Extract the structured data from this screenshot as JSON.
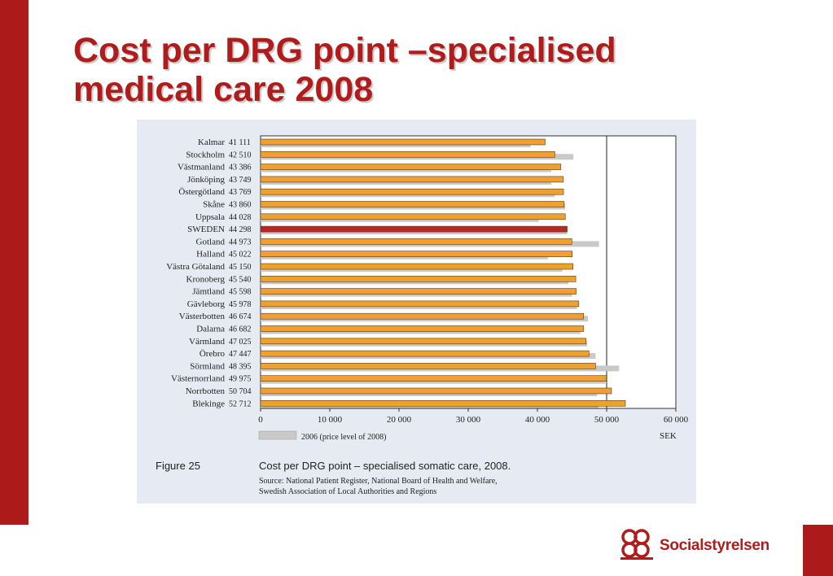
{
  "slide": {
    "title_line1": "Cost per DRG point –specialised",
    "title_line2": "medical care 2008"
  },
  "figure": {
    "label": "Figure 25",
    "caption": "Cost per DRG point – specialised somatic care, 2008.",
    "source_line1": "Source: National Patient Register, National Board of Health and Welfare,",
    "source_line2": "Swedish Association of Local Authorities and Regions"
  },
  "logo": {
    "text": "Socialstyrelsen",
    "icon": "socialstyrelsen-emblem-icon"
  },
  "colors": {
    "brand_red": "#ad1a1a",
    "bar_2008": "#f0a030",
    "bar_sweden": "#b22a26",
    "bar_2006": "#c9c9c9",
    "panel_bg": "#e6eaf2"
  },
  "chart_data": {
    "type": "bar",
    "orientation": "horizontal",
    "categories": [
      "Kalmar",
      "Stockholm",
      "Västmanland",
      "Jönköping",
      "Östergötland",
      "Skåne",
      "Uppsala",
      "SWEDEN",
      "Gotland",
      "Halland",
      "Västra Götaland",
      "Kronoberg",
      "Jämtland",
      "Gävleborg",
      "Västerbotten",
      "Dalarna",
      "Värmland",
      "Örebro",
      "Sörmland",
      "Västernorrland",
      "Norrbotten",
      "Blekinge"
    ],
    "value_labels": [
      "41 111",
      "42 510",
      "43 386",
      "43 749",
      "43 769",
      "43 860",
      "44 028",
      "44 298",
      "44 973",
      "45 022",
      "45 150",
      "45 540",
      "45 598",
      "45 978",
      "46 674",
      "46 682",
      "47 025",
      "47 447",
      "48 395",
      "49 975",
      "50 704",
      "52 712"
    ],
    "highlight_category": "SWEDEN",
    "series": [
      {
        "values": [
          41111,
          42510,
          43386,
          43749,
          43769,
          43860,
          44028,
          44298,
          44973,
          45022,
          45150,
          45540,
          45598,
          45978,
          46674,
          46682,
          47025,
          47447,
          48395,
          49975,
          50704,
          52712
        ]
      },
      {
        "name": "2006 (price level of 2008)",
        "values": [
          39000,
          45200,
          42000,
          42000,
          42500,
          44000,
          40200,
          44300,
          48900,
          41500,
          43600,
          44500,
          45000,
          45700,
          47300,
          46200,
          47200,
          48400,
          51800,
          49800,
          48600,
          48800
        ]
      }
    ],
    "xlim": [
      0,
      60000
    ],
    "xticks": [
      "0",
      "10 000",
      "20 000",
      "30 000",
      "40 000",
      "50 000",
      "60 000"
    ],
    "xtick_values": [
      0,
      10000,
      20000,
      30000,
      40000,
      50000,
      60000
    ],
    "reference_line": 50000,
    "unit_label": "SEK",
    "legend_position": "bottom-left",
    "grid": false
  }
}
